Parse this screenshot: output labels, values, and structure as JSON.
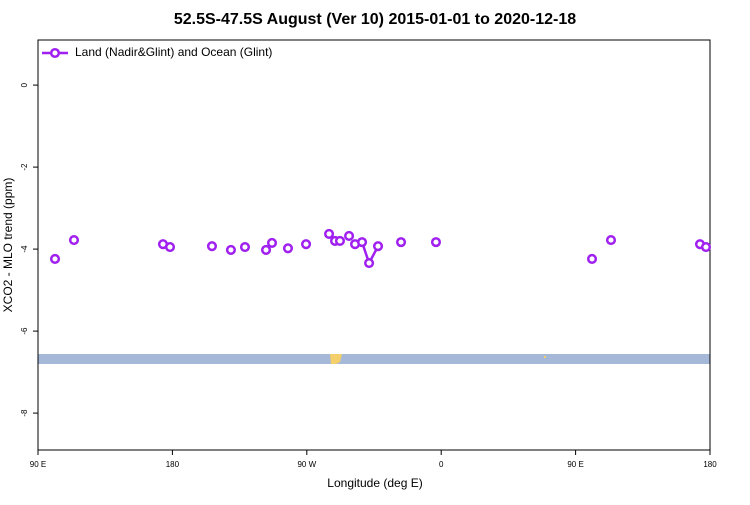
{
  "chart_data": {
    "type": "line",
    "title": "52.5S-47.5S August (Ver 10)   2015-01-01 to 2020-12-18",
    "xlabel": "Longitude (deg E)",
    "ylabel": "XCO2 - MLO trend (ppm)",
    "x": [
      101.4,
      null,
      114.1,
      null,
      173.7,
      null,
      178.4,
      null,
      206.5,
      null,
      219.2,
      null,
      228.6,
      null,
      242.7,
      null,
      246.7,
      null,
      257.4,
      null,
      269.5,
      null,
      284.9,
      null,
      288.9,
      null,
      292.2,
      null,
      298.3,
      null,
      302.3,
      307.0,
      311.7,
      317.7,
      null,
      333.1,
      null,
      356.5,
      null,
      461.0,
      null,
      473.7,
      null,
      533.3,
      null,
      537.3
    ],
    "series": [
      {
        "name": "Land (Nadir&Glint) and Ocean (Glint)",
        "color": "#a020f0",
        "values": [
          -4.24,
          null,
          -3.78,
          null,
          -3.88,
          null,
          -3.95,
          null,
          -3.93,
          null,
          -4.02,
          null,
          -3.95,
          null,
          -4.02,
          null,
          -3.85,
          null,
          -3.98,
          null,
          -3.88,
          null,
          -3.63,
          null,
          -3.8,
          null,
          -3.8,
          null,
          -3.68,
          null,
          -3.88,
          -3.83,
          -4.34,
          -3.93,
          null,
          -3.83,
          null,
          -3.83,
          null,
          -4.24,
          null,
          -3.78,
          null,
          -3.88,
          null,
          -3.95
        ]
      }
    ],
    "xlim": [
      90,
      540
    ],
    "xticks": [
      {
        "value": 90,
        "label": "90 E"
      },
      {
        "value": 180,
        "label": "180"
      },
      {
        "value": 270,
        "label": "90 W"
      },
      {
        "value": 360,
        "label": "0"
      },
      {
        "value": 450,
        "label": "90 E"
      },
      {
        "value": 540,
        "label": "180"
      }
    ],
    "ylim": [
      -8.9,
      1.1
    ],
    "yticks": [
      0,
      -2,
      -4,
      -6,
      -8
    ],
    "legend": "top-left"
  }
}
